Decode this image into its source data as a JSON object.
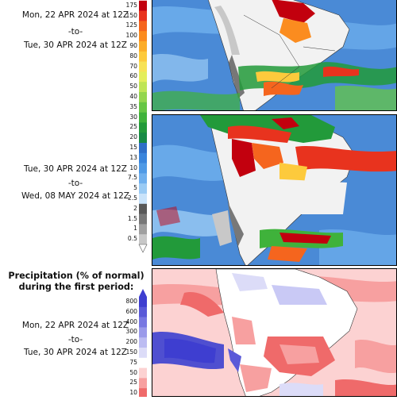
{
  "first_period": {
    "start": "Mon, 22 APR 2024 at 12Z",
    "sep": "-to-",
    "end": "Tue, 30 APR 2024 at 12Z"
  },
  "second_period": {
    "start": "Tue, 30 APR 2024 at 12Z",
    "sep": "-to-",
    "end": "Wed, 08 MAY 2024 at 12Z"
  },
  "anomaly": {
    "heading_line1": "Precipitation (% of normal)",
    "heading_line2": "during the first period:",
    "start": "Mon, 22 APR 2024 at 12Z",
    "sep": "-to-",
    "end": "Tue, 30 APR 2024 at 12Z"
  },
  "precip_scale": {
    "levels": [
      {
        "label": "175",
        "color": "#c2000e"
      },
      {
        "label": "150",
        "color": "#e8331e"
      },
      {
        "label": "125",
        "color": "#f5651e"
      },
      {
        "label": "100",
        "color": "#fb8c1f"
      },
      {
        "label": "90",
        "color": "#fcad29"
      },
      {
        "label": "80",
        "color": "#fdca3c"
      },
      {
        "label": "70",
        "color": "#f7e256"
      },
      {
        "label": "60",
        "color": "#e4ee5c"
      },
      {
        "label": "50",
        "color": "#bfe556"
      },
      {
        "label": "40",
        "color": "#93d64e"
      },
      {
        "label": "35",
        "color": "#66c644"
      },
      {
        "label": "30",
        "color": "#3fb23b"
      },
      {
        "label": "25",
        "color": "#229a3a"
      },
      {
        "label": "20",
        "color": "#178a45"
      },
      {
        "label": "15",
        "color": "#2f6fc8"
      },
      {
        "label": "13",
        "color": "#3a85dc"
      },
      {
        "label": "10",
        "color": "#4f9ae6"
      },
      {
        "label": "7.5",
        "color": "#6fb0ee"
      },
      {
        "label": "5",
        "color": "#9acbf4"
      },
      {
        "label": "2.5",
        "color": "#c9e3fa"
      },
      {
        "label": "2",
        "color": "#585858"
      },
      {
        "label": "1.5",
        "color": "#787878"
      },
      {
        "label": "1",
        "color": "#a0a0a0"
      },
      {
        "label": "0.5",
        "color": "#c8c8c8"
      }
    ]
  },
  "anomaly_scale": {
    "levels": [
      {
        "label": "800",
        "color": "#3e3ed0"
      },
      {
        "label": "600",
        "color": "#5a5ad8"
      },
      {
        "label": "400",
        "color": "#7878e2"
      },
      {
        "label": "300",
        "color": "#9a9aea"
      },
      {
        "label": "200",
        "color": "#bcbcf2"
      },
      {
        "label": "150",
        "color": "#dcdcf8"
      },
      {
        "label": "75",
        "color": "#ffffff"
      },
      {
        "label": "50",
        "color": "#fcd2d2"
      },
      {
        "label": "25",
        "color": "#f7a0a0"
      },
      {
        "label": "10",
        "color": "#ef6a6a"
      }
    ]
  },
  "colors": {
    "background_ocean": "#4a8ad6",
    "heavy_rain": "#e8331e",
    "dry_land": "#f2f2f2",
    "anomaly_dry": "#ef6a6a",
    "anomaly_wet": "#4f4fd0"
  }
}
